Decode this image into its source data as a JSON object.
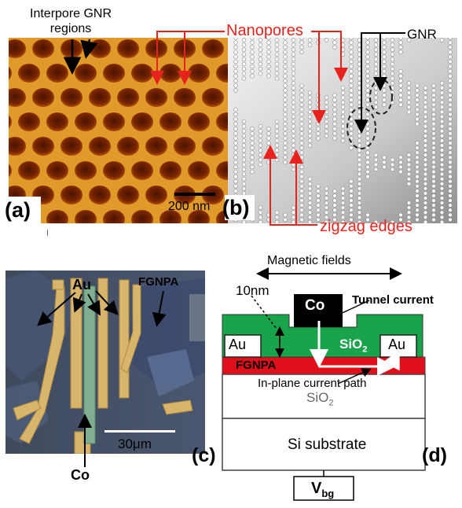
{
  "panel_a": {
    "interpore_label_line1": "Interpore GNR",
    "interpore_label_line2": "regions",
    "scale_bar": "200 nm",
    "letter": "(a)"
  },
  "panel_b": {
    "nanopores_label": "Nanopores",
    "gnr_label": "GNR",
    "zigzag_label": "zigzag edges",
    "letter": "(b)"
  },
  "panel_c": {
    "au_label": "Au",
    "fgnpa_label": "FGNPA",
    "scale_bar": "30μm",
    "co_label": "Co",
    "letter": "(c)"
  },
  "panel_d": {
    "magnetic_fields": "Magnetic fields",
    "thickness": "10nm",
    "co_label": "Co",
    "tunnel_current": "Tunnel current",
    "au_left": "Au",
    "au_right": "Au",
    "sio2_top": "SiO",
    "sio2_top_sub": "2",
    "fgnpa": "FGNPA",
    "inplane": "In-plane current path",
    "sio2_bottom": "SiO",
    "sio2_bottom_sub": "2",
    "si_substrate": "Si substrate",
    "vbg": "V",
    "vbg_sub": "bg",
    "letter": "(d)"
  },
  "colors": {
    "red_annotation": "#e8231e",
    "green_oxide": "#19a34a",
    "fgnpa_red": "#e0101a"
  }
}
